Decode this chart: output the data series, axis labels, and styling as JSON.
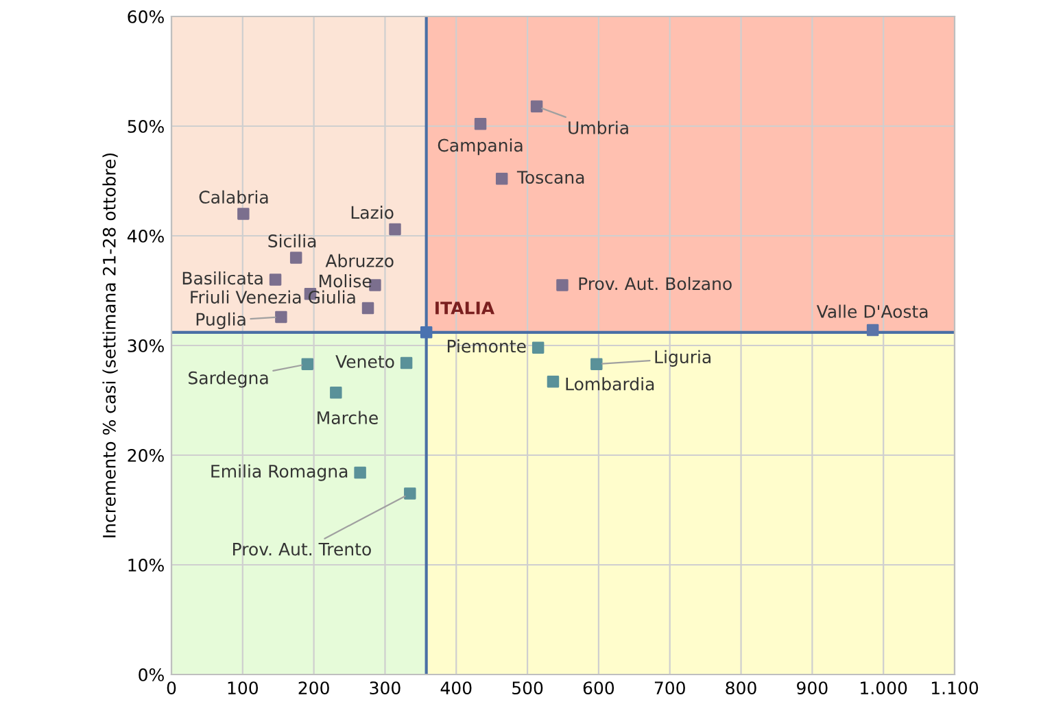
{
  "chart_data": {
    "type": "scatter",
    "ylabel": "Incremento % casi (settimana 21-28 ottobre)",
    "xlim": [
      0,
      1100
    ],
    "ylim": [
      0,
      60
    ],
    "xticks": [
      0,
      100,
      200,
      300,
      400,
      500,
      600,
      700,
      800,
      900,
      {
        "value": 1000,
        "label": "1.000"
      },
      {
        "value": 1100,
        "label": "1.100"
      }
    ],
    "yticks": [
      {
        "value": 0,
        "label": "0%"
      },
      {
        "value": 10,
        "label": "10%"
      },
      {
        "value": 20,
        "label": "20%"
      },
      {
        "value": 30,
        "label": "30%"
      },
      {
        "value": 40,
        "label": "40%"
      },
      {
        "value": 50,
        "label": "50%"
      },
      {
        "value": 60,
        "label": "60%"
      }
    ],
    "grid": true,
    "marker": "square",
    "ref_lines": [
      {
        "axis": "x",
        "value": 358,
        "label": null,
        "color": "#4a6fa5"
      },
      {
        "axis": "y",
        "value": 31.2,
        "label": null,
        "color": "#4a6fa5"
      }
    ],
    "bands": [
      {
        "axis": "x",
        "from": 0,
        "to": 358,
        "color": "#fce4d6"
      },
      {
        "axis": "x",
        "from": 358,
        "to": 1100,
        "color": "#ffc0b0"
      },
      {
        "axis": "x",
        "from": 0,
        "to": 358,
        "color": "#e6fbd9"
      },
      {
        "axis": "x",
        "from": 358,
        "to": 1100,
        "color": "#fffdcc"
      }
    ],
    "series": [
      {
        "name": "Calabria",
        "color": "#7b6f8e",
        "x": [
          101
        ],
        "values": [
          42.0
        ]
      },
      {
        "name": "Lazio",
        "color": "#7b6f8e",
        "x": [
          314
        ],
        "values": [
          40.6
        ]
      },
      {
        "name": "Sicilia",
        "color": "#7b6f8e",
        "x": [
          175
        ],
        "values": [
          38.0
        ]
      },
      {
        "name": "Basilicata",
        "color": "#7b6f8e",
        "x": [
          146
        ],
        "values": [
          36.0
        ]
      },
      {
        "name": "Molise",
        "color": "#7b6f8e",
        "x": [
          195
        ],
        "values": [
          34.7
        ]
      },
      {
        "name": "Abruzzo",
        "color": "#7b6f8e",
        "x": [
          286
        ],
        "values": [
          35.5
        ]
      },
      {
        "name": "Friuli Venezia Giulia",
        "color": "#7b6f8e",
        "x": [
          276
        ],
        "values": [
          33.4
        ]
      },
      {
        "name": "Puglia",
        "color": "#7b6f8e",
        "x": [
          154
        ],
        "values": [
          32.6
        ]
      },
      {
        "name": "Campania",
        "color": "#7b6f8e",
        "x": [
          434
        ],
        "values": [
          50.2
        ]
      },
      {
        "name": "Umbria",
        "color": "#7b6f8e",
        "x": [
          513
        ],
        "values": [
          51.8
        ]
      },
      {
        "name": "Toscana",
        "color": "#7b6f8e",
        "x": [
          464
        ],
        "values": [
          45.2
        ]
      },
      {
        "name": "Prov. Aut. Bolzano",
        "color": "#7b6f8e",
        "x": [
          549
        ],
        "values": [
          35.5
        ]
      },
      {
        "name": "Valle D'Aosta",
        "color": "#5b74a8",
        "x": [
          985
        ],
        "values": [
          31.4
        ]
      },
      {
        "name": "ITALIA",
        "color": "#4a72b0",
        "x": [
          358
        ],
        "values": [
          31.2
        ]
      },
      {
        "name": "Piemonte",
        "color": "#5a9199",
        "x": [
          515
        ],
        "values": [
          29.8
        ]
      },
      {
        "name": "Liguria",
        "color": "#5a9199",
        "x": [
          597
        ],
        "values": [
          28.3
        ]
      },
      {
        "name": "Lombardia",
        "color": "#5a9199",
        "x": [
          536
        ],
        "values": [
          26.7
        ]
      },
      {
        "name": "Sardegna",
        "color": "#5a9199",
        "x": [
          191
        ],
        "values": [
          28.3
        ]
      },
      {
        "name": "Veneto",
        "color": "#5a9199",
        "x": [
          330
        ],
        "values": [
          28.4
        ]
      },
      {
        "name": "Marche",
        "color": "#5a9199",
        "x": [
          231
        ],
        "values": [
          25.7
        ]
      },
      {
        "name": "Emilia Romagna",
        "color": "#5a9199",
        "x": [
          265
        ],
        "values": [
          18.4
        ]
      },
      {
        "name": "Prov. Aut. Trento",
        "color": "#5a9199",
        "x": [
          335
        ],
        "values": [
          16.5
        ]
      }
    ]
  }
}
